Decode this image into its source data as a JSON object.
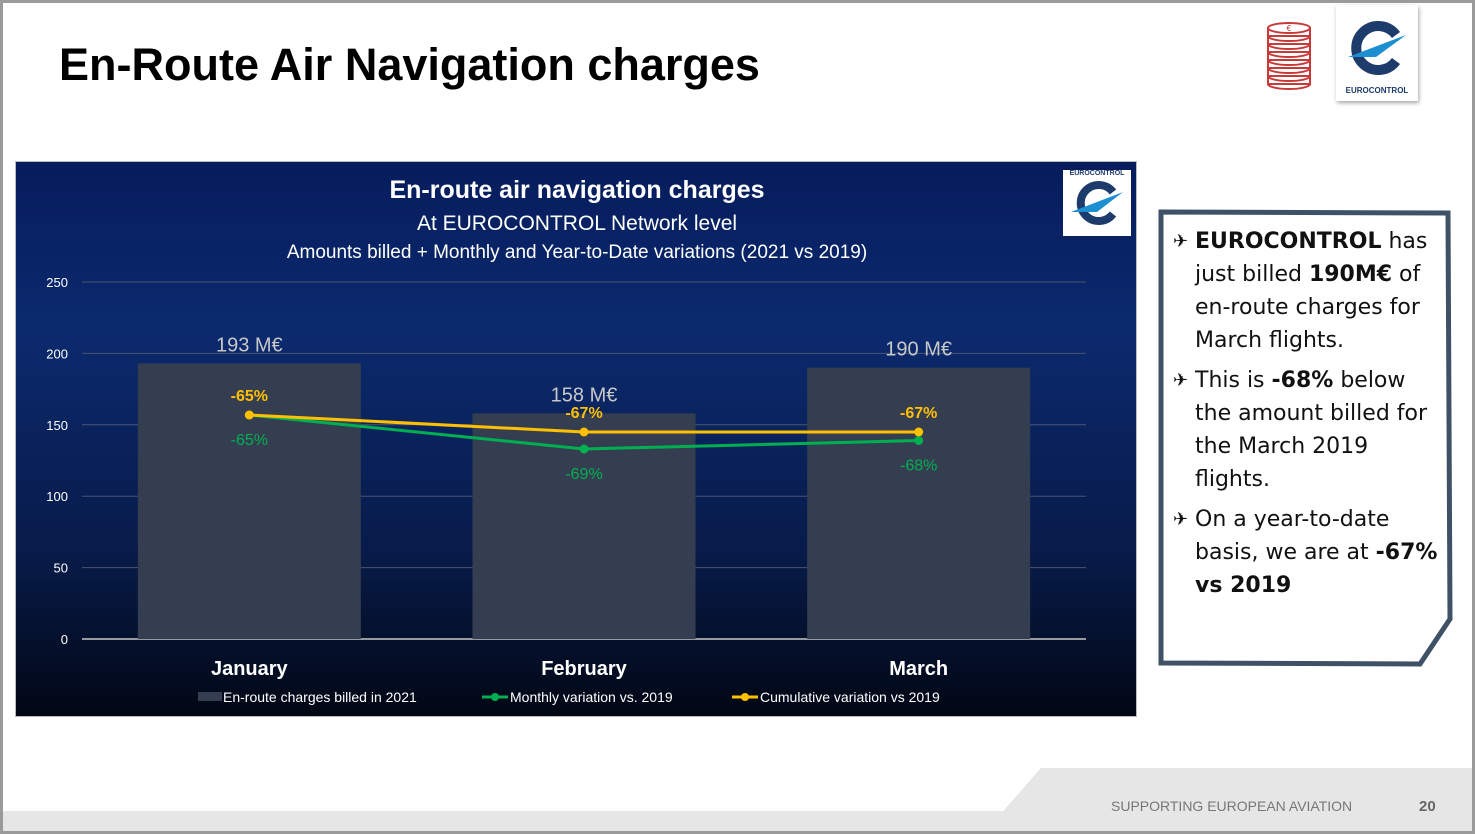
{
  "slide": {
    "title": "En-Route Air Navigation charges",
    "logo_text": "EUROCONTROL",
    "footer": "SUPPORTING EUROPEAN AVIATION",
    "page_number": "20"
  },
  "textbox": {
    "bullets": [
      [
        {
          "t": "EUROCONTROL",
          "b": true
        },
        {
          "t": " has just billed "
        },
        {
          "t": "190M€",
          "b": true
        },
        {
          "t": " of en-route charges for March flights."
        }
      ],
      [
        {
          "t": "This is "
        },
        {
          "t": "-68%",
          "b": true
        },
        {
          "t": " below the amount billed for the March 2019 flights."
        }
      ],
      [
        {
          "t": "On a year-to-date basis, we are at "
        },
        {
          "t": "-67% vs 2019",
          "b": true
        }
      ]
    ]
  },
  "chart_data": {
    "type": "bar",
    "title": "En-route air navigation charges",
    "subtitle": "At EUROCONTROL Network level",
    "subtitle2": "Amounts billed + Monthly and Year-to-Date variations (2021 vs 2019)",
    "categories": [
      "January",
      "February",
      "March"
    ],
    "ylim": [
      0,
      250
    ],
    "yticks": [
      "0",
      "50",
      "100",
      "150",
      "200",
      "250"
    ],
    "grid": true,
    "legend_position": "bottom",
    "secondary_axis_hidden": true,
    "series": [
      {
        "name": "En-route  charges billed in 2021",
        "type": "bar",
        "values": [
          193,
          158,
          190
        ],
        "labels": [
          "193 M€",
          "158 M€",
          "190 M€"
        ],
        "color": "#343e50"
      },
      {
        "name": "Monthly variation vs. 2019",
        "type": "line",
        "values": [
          -65,
          -69,
          -68
        ],
        "labels": [
          "-65%",
          "-69%",
          "-68%"
        ],
        "color": "#00b050"
      },
      {
        "name": "Cumulative variation vs 2019",
        "type": "line",
        "values": [
          -65,
          -67,
          -67
        ],
        "labels": [
          "-65%",
          "-67%",
          "-67%"
        ],
        "color": "#ffc000"
      }
    ]
  }
}
